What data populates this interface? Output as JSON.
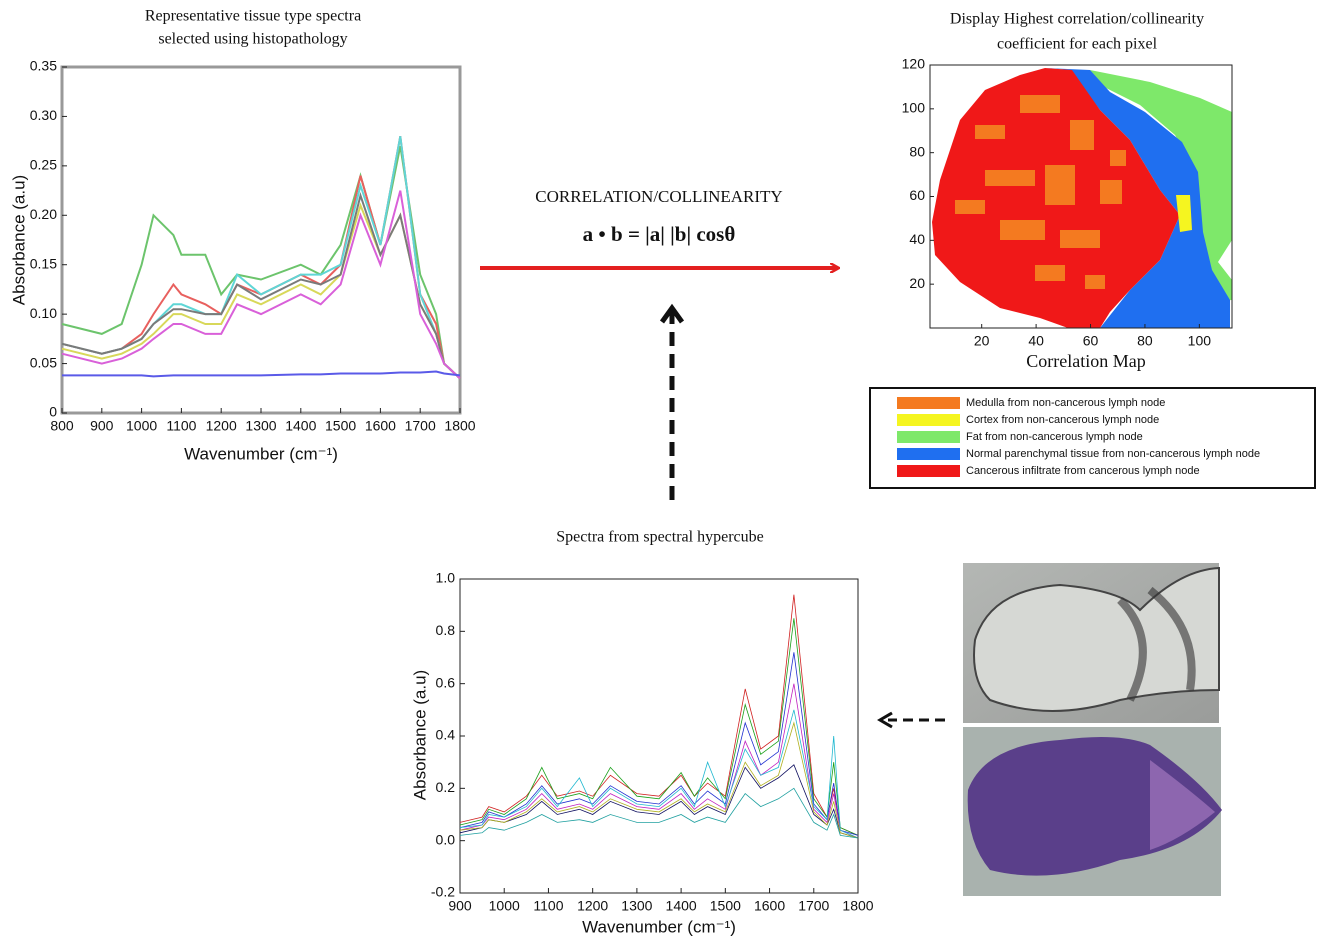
{
  "chart_data": [
    {
      "type": "line",
      "title": [
        "Representative tissue type spectra",
        "selected using histopathology"
      ],
      "x_label": "Wavenumber (cm⁻¹)",
      "y_label": "Absorbance (a.u)",
      "xlim": [
        800,
        1800
      ],
      "xticks": [
        800,
        900,
        1000,
        1100,
        1200,
        1300,
        1400,
        1500,
        1600,
        1700,
        1800
      ],
      "ylim": [
        0,
        0.35
      ],
      "yticks": [
        0,
        0.05,
        {
          "value": 0.1,
          "label": "0.10"
        },
        0.15,
        {
          "value": 0.2,
          "label": "0.20"
        },
        0.25,
        {
          "value": 0.3,
          "label": "0.30"
        },
        0.35
      ],
      "x": [
        800,
        900,
        950,
        1000,
        1030,
        1080,
        1100,
        1160,
        1200,
        1240,
        1300,
        1400,
        1450,
        1500,
        1550,
        1600,
        1650,
        1700,
        1740,
        1760,
        1800
      ],
      "series": [
        {
          "color": "#6cc46c",
          "values": [
            0.09,
            0.08,
            0.09,
            0.15,
            0.2,
            0.18,
            0.16,
            0.16,
            0.12,
            0.14,
            0.135,
            0.15,
            0.14,
            0.17,
            0.24,
            0.17,
            0.27,
            0.14,
            0.1,
            0.05,
            0.035
          ]
        },
        {
          "color": "#e8605e",
          "values": [
            0.07,
            0.06,
            0.065,
            0.08,
            0.1,
            0.13,
            0.12,
            0.11,
            0.1,
            0.13,
            0.12,
            0.14,
            0.13,
            0.15,
            0.24,
            0.17,
            0.28,
            0.12,
            0.09,
            0.05,
            0.035
          ]
        },
        {
          "color": "#5fd6d6",
          "values": [
            0.07,
            0.06,
            0.065,
            0.075,
            0.09,
            0.11,
            0.11,
            0.1,
            0.1,
            0.14,
            0.12,
            0.14,
            0.14,
            0.15,
            0.23,
            0.17,
            0.28,
            0.12,
            0.08,
            0.05,
            0.035
          ]
        },
        {
          "color": "#d8d85a",
          "values": [
            0.065,
            0.055,
            0.06,
            0.07,
            0.08,
            0.1,
            0.1,
            0.09,
            0.09,
            0.12,
            0.11,
            0.13,
            0.12,
            0.14,
            0.21,
            0.16,
            0.2,
            0.11,
            0.08,
            0.05,
            0.035
          ]
        },
        {
          "color": "#7a7a7a",
          "values": [
            0.07,
            0.06,
            0.065,
            0.075,
            0.09,
            0.105,
            0.105,
            0.1,
            0.1,
            0.13,
            0.115,
            0.135,
            0.13,
            0.14,
            0.22,
            0.16,
            0.2,
            0.11,
            0.08,
            0.05,
            0.035
          ]
        },
        {
          "color": "#d960d9",
          "values": [
            0.06,
            0.05,
            0.055,
            0.065,
            0.075,
            0.09,
            0.09,
            0.08,
            0.08,
            0.11,
            0.1,
            0.12,
            0.11,
            0.13,
            0.2,
            0.15,
            0.225,
            0.1,
            0.07,
            0.05,
            0.035
          ]
        },
        {
          "color": "#5a5ae8",
          "values": [
            0.038,
            0.038,
            0.038,
            0.038,
            0.037,
            0.038,
            0.038,
            0.038,
            0.038,
            0.038,
            0.038,
            0.039,
            0.039,
            0.04,
            0.04,
            0.04,
            0.041,
            0.041,
            0.042,
            0.04,
            0.038
          ]
        }
      ]
    },
    {
      "type": "heatmap",
      "title": [
        "Display Highest correlation/collinearity",
        "coefficient for each pixel"
      ],
      "x_label": "Correlation Map",
      "xlim": [
        1,
        112
      ],
      "xticks": [
        20,
        40,
        60,
        80,
        100
      ],
      "ylim": [
        0,
        120
      ],
      "yticks": [
        20,
        40,
        60,
        80,
        100,
        120
      ],
      "legend": [
        {
          "label": "Medulla from non-cancerous lymph node",
          "color": "#f47a20"
        },
        {
          "label": "Cortex from non-cancerous lymph node",
          "color": "#f5f520"
        },
        {
          "label": "Fat from non-cancerous lymph node",
          "color": "#7ee86a"
        },
        {
          "label": "Normal parenchymal tissue from non-cancerous lymph node",
          "color": "#1f6ff0"
        },
        {
          "label": "Cancerous infiltrate from cancerous lymph node",
          "color": "#f01818"
        }
      ]
    },
    {
      "type": "line",
      "title": "Spectra from spectral hypercube",
      "x_label": "Wavenumber (cm⁻¹)",
      "y_label": "Absorbance (a.u)",
      "xlim": [
        900,
        1800
      ],
      "xticks": [
        900,
        1000,
        1100,
        1200,
        1300,
        1400,
        1500,
        1600,
        1700,
        1800
      ],
      "ylim": [
        -0.2,
        1.0
      ],
      "yticks": [
        -0.2,
        {
          "value": 0,
          "label": "0.0"
        },
        0.2,
        0.4,
        0.6,
        0.8,
        {
          "value": 1,
          "label": "1.0"
        }
      ],
      "x": [
        900,
        950,
        965,
        1000,
        1050,
        1085,
        1120,
        1170,
        1200,
        1240,
        1300,
        1350,
        1400,
        1430,
        1460,
        1500,
        1545,
        1580,
        1620,
        1655,
        1700,
        1730,
        1745,
        1760,
        1800
      ],
      "series": [
        {
          "color": "#d02020",
          "values": [
            0.07,
            0.09,
            0.13,
            0.11,
            0.17,
            0.25,
            0.17,
            0.19,
            0.17,
            0.25,
            0.18,
            0.17,
            0.25,
            0.17,
            0.22,
            0.17,
            0.58,
            0.35,
            0.4,
            0.94,
            0.18,
            0.09,
            0.2,
            0.05,
            0.02
          ]
        },
        {
          "color": "#1aa01a",
          "values": [
            0.06,
            0.08,
            0.12,
            0.1,
            0.16,
            0.28,
            0.16,
            0.18,
            0.16,
            0.28,
            0.17,
            0.16,
            0.26,
            0.17,
            0.24,
            0.16,
            0.52,
            0.33,
            0.38,
            0.85,
            0.16,
            0.09,
            0.3,
            0.05,
            0.02
          ]
        },
        {
          "color": "#2030d0",
          "values": [
            0.05,
            0.07,
            0.11,
            0.09,
            0.14,
            0.21,
            0.14,
            0.16,
            0.14,
            0.21,
            0.15,
            0.14,
            0.21,
            0.14,
            0.19,
            0.14,
            0.45,
            0.29,
            0.34,
            0.72,
            0.14,
            0.08,
            0.22,
            0.04,
            0.02
          ]
        },
        {
          "color": "#c020c0",
          "values": [
            0.04,
            0.06,
            0.09,
            0.08,
            0.12,
            0.18,
            0.12,
            0.14,
            0.12,
            0.18,
            0.13,
            0.12,
            0.18,
            0.12,
            0.16,
            0.12,
            0.38,
            0.25,
            0.3,
            0.6,
            0.12,
            0.07,
            0.18,
            0.04,
            0.01
          ]
        },
        {
          "color": "#20b8d0",
          "values": [
            0.05,
            0.06,
            0.1,
            0.09,
            0.13,
            0.2,
            0.13,
            0.24,
            0.13,
            0.2,
            0.14,
            0.13,
            0.2,
            0.13,
            0.3,
            0.13,
            0.35,
            0.25,
            0.28,
            0.5,
            0.13,
            0.08,
            0.4,
            0.04,
            0.01
          ]
        },
        {
          "color": "#101060",
          "values": [
            0.03,
            0.05,
            0.08,
            0.07,
            0.1,
            0.15,
            0.1,
            0.12,
            0.1,
            0.15,
            0.11,
            0.1,
            0.15,
            0.1,
            0.13,
            0.1,
            0.28,
            0.2,
            0.24,
            0.29,
            0.1,
            0.06,
            0.12,
            0.03,
            0.01
          ]
        },
        {
          "color": "#b0b020",
          "values": [
            0.04,
            0.05,
            0.08,
            0.07,
            0.11,
            0.16,
            0.11,
            0.13,
            0.11,
            0.16,
            0.12,
            0.11,
            0.16,
            0.11,
            0.14,
            0.11,
            0.3,
            0.21,
            0.25,
            0.45,
            0.11,
            0.06,
            0.15,
            0.03,
            0.01
          ]
        },
        {
          "color": "#20a0a0",
          "values": [
            0.02,
            0.03,
            0.05,
            0.04,
            0.07,
            0.1,
            0.07,
            0.08,
            0.07,
            0.1,
            0.07,
            0.07,
            0.1,
            0.07,
            0.09,
            0.07,
            0.18,
            0.13,
            0.16,
            0.2,
            0.07,
            0.04,
            0.1,
            0.02,
            0.01
          ]
        }
      ]
    }
  ],
  "diagram": {
    "method_label": "CORRELATION/COLLINEARITY",
    "formula": "a • b = |a| |b| cosθ"
  }
}
